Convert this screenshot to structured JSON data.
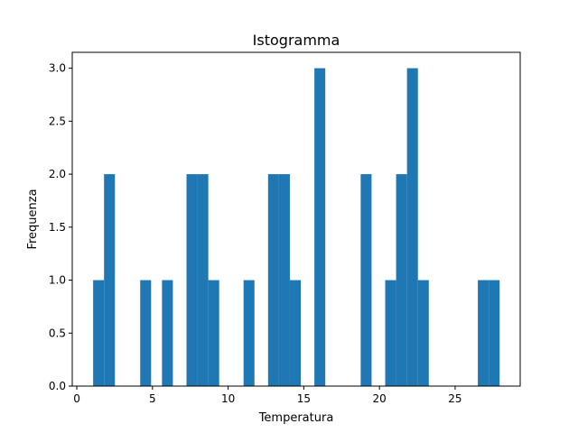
{
  "chart_data": {
    "type": "bar",
    "title": "Istogramma",
    "xlabel": "Temperatura",
    "ylabel": "Frequenza",
    "xlim": [
      -0.3,
      29.3
    ],
    "ylim": [
      0,
      3.15
    ],
    "xticks": [
      0,
      5,
      10,
      15,
      20,
      25
    ],
    "yticks": [
      0.0,
      0.5,
      1.0,
      1.5,
      2.0,
      2.5,
      3.0
    ],
    "xtick_labels": [
      "0",
      "5",
      "10",
      "15",
      "20",
      "25"
    ],
    "ytick_labels": [
      "0.0",
      "0.5",
      "1.0",
      "1.5",
      "2.0",
      "2.5",
      "3.0"
    ],
    "bar_color": "#1f77b4",
    "bin_width": 0.72,
    "bins": [
      {
        "x0": 1.08,
        "count": 1
      },
      {
        "x0": 1.8,
        "count": 2
      },
      {
        "x0": 4.19,
        "count": 1
      },
      {
        "x0": 5.63,
        "count": 1
      },
      {
        "x0": 7.25,
        "count": 2
      },
      {
        "x0": 7.97,
        "count": 2
      },
      {
        "x0": 8.69,
        "count": 1
      },
      {
        "x0": 11.02,
        "count": 1
      },
      {
        "x0": 12.64,
        "count": 2
      },
      {
        "x0": 13.36,
        "count": 2
      },
      {
        "x0": 14.08,
        "count": 1
      },
      {
        "x0": 15.7,
        "count": 3
      },
      {
        "x0": 18.76,
        "count": 2
      },
      {
        "x0": 20.38,
        "count": 1
      },
      {
        "x0": 21.1,
        "count": 2
      },
      {
        "x0": 21.82,
        "count": 3
      },
      {
        "x0": 22.54,
        "count": 1
      },
      {
        "x0": 26.5,
        "count": 1
      },
      {
        "x0": 27.22,
        "count": 1
      }
    ]
  }
}
